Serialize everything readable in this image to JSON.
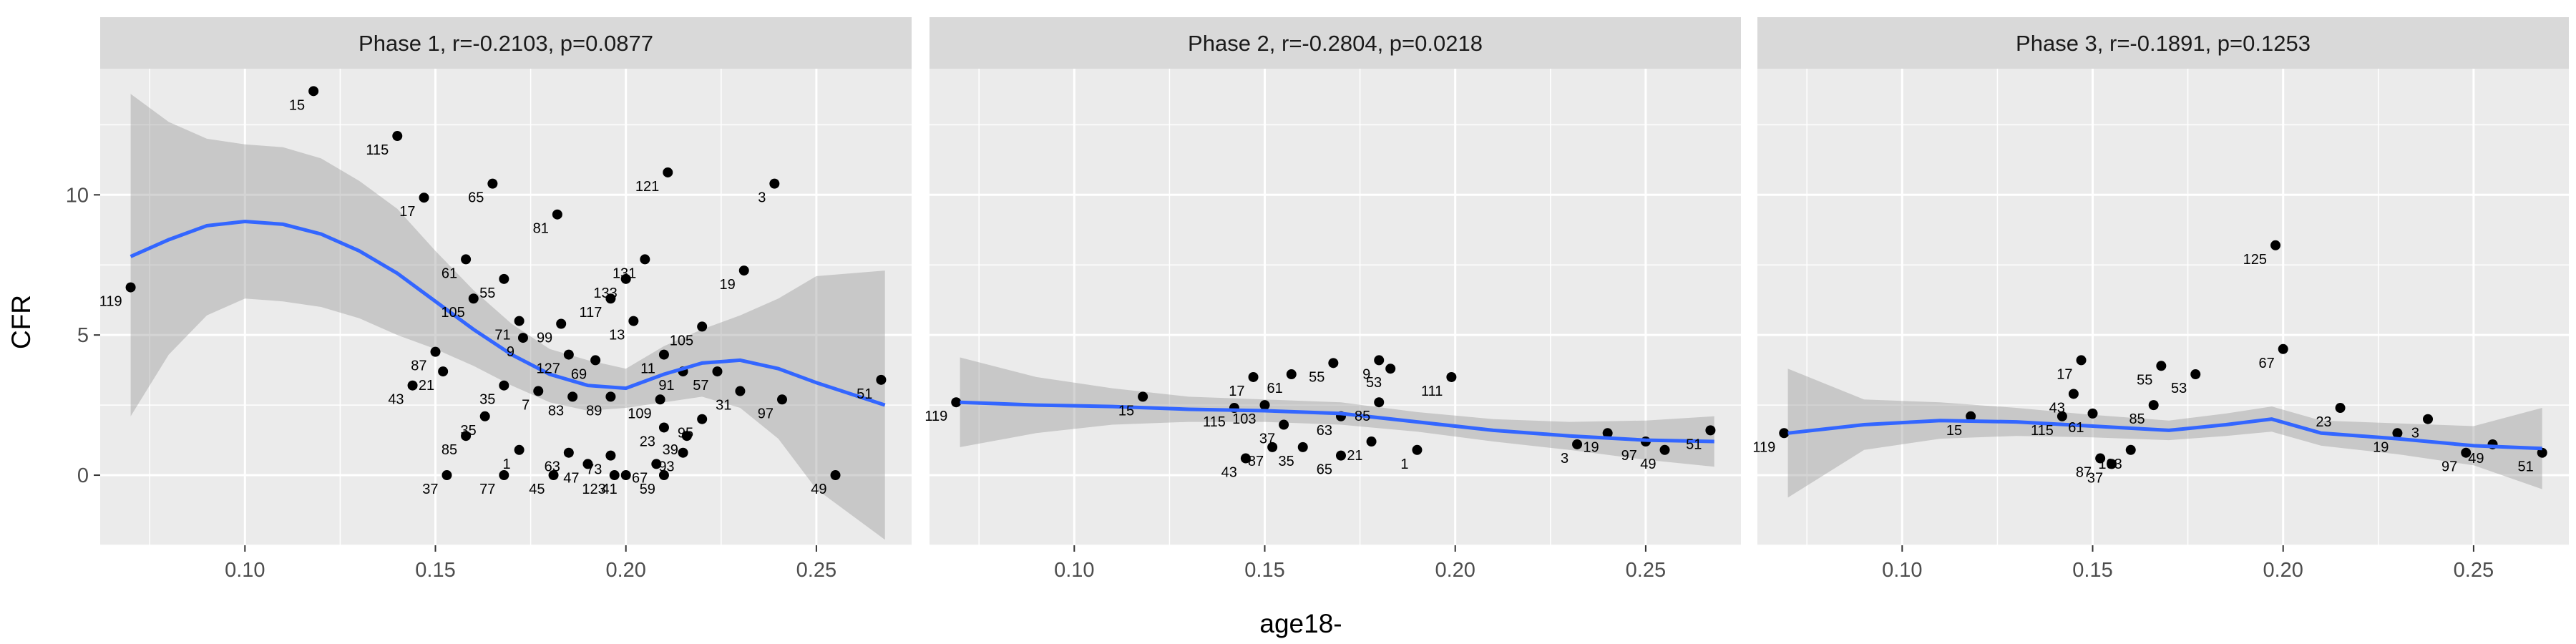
{
  "chart_data": {
    "type": "scatter",
    "xlabel": "age18-",
    "ylabel": "CFR",
    "xlim": [
      0.062,
      0.275
    ],
    "ylim": [
      -2.5,
      14.5
    ],
    "x_ticks": [
      "0.10",
      "0.15",
      "0.20",
      "0.25"
    ],
    "x_tick_values": [
      0.1,
      0.15,
      0.2,
      0.25
    ],
    "y_ticks": [
      "0",
      "5",
      "10"
    ],
    "y_tick_values": [
      0,
      5,
      10
    ],
    "grid": true,
    "colors": {
      "panel_bg": "#ebebeb",
      "strip_bg": "#d9d9d9",
      "grid": "#ffffff",
      "points": "#000000",
      "smooth_line": "#3366ff",
      "ribbon": "#999999"
    },
    "panels": [
      {
        "title": "Phase 1, r=-0.2103, p=0.0877",
        "smooth": {
          "x": [
            0.07,
            0.08,
            0.09,
            0.1,
            0.11,
            0.12,
            0.13,
            0.14,
            0.15,
            0.16,
            0.17,
            0.18,
            0.19,
            0.2,
            0.21,
            0.22,
            0.23,
            0.24,
            0.25,
            0.268
          ],
          "y": [
            7.8,
            8.4,
            8.9,
            9.05,
            8.95,
            8.6,
            8.0,
            7.2,
            6.2,
            5.2,
            4.3,
            3.6,
            3.2,
            3.1,
            3.6,
            4.0,
            4.1,
            3.8,
            3.3,
            2.5
          ],
          "lower": [
            2.1,
            4.3,
            5.7,
            6.3,
            6.2,
            6.0,
            5.6,
            5.0,
            4.5,
            3.9,
            3.2,
            2.6,
            2.3,
            2.4,
            2.6,
            2.8,
            2.4,
            1.3,
            -0.5,
            -2.3
          ],
          "upper": [
            13.6,
            12.6,
            12.0,
            11.8,
            11.7,
            11.3,
            10.5,
            9.5,
            8.0,
            6.6,
            5.4,
            4.5,
            4.1,
            3.8,
            4.6,
            5.2,
            5.7,
            6.3,
            7.1,
            7.3
          ]
        },
        "points": [
          {
            "x": 0.07,
            "y": 6.7,
            "label": "119"
          },
          {
            "x": 0.118,
            "y": 13.7,
            "label": "15"
          },
          {
            "x": 0.14,
            "y": 12.1,
            "label": "115"
          },
          {
            "x": 0.147,
            "y": 9.9,
            "label": "17"
          },
          {
            "x": 0.165,
            "y": 10.4,
            "label": "65"
          },
          {
            "x": 0.182,
            "y": 9.3,
            "label": "81"
          },
          {
            "x": 0.211,
            "y": 10.8,
            "label": "121"
          },
          {
            "x": 0.239,
            "y": 10.4,
            "label": "3"
          },
          {
            "x": 0.158,
            "y": 7.7,
            "label": "61"
          },
          {
            "x": 0.168,
            "y": 7.0,
            "label": "55"
          },
          {
            "x": 0.205,
            "y": 7.7,
            "label": "131"
          },
          {
            "x": 0.2,
            "y": 7.0,
            "label": "133"
          },
          {
            "x": 0.231,
            "y": 7.3,
            "label": "19"
          },
          {
            "x": 0.16,
            "y": 6.3,
            "label": "105"
          },
          {
            "x": 0.172,
            "y": 5.5,
            "label": "71"
          },
          {
            "x": 0.183,
            "y": 5.4,
            "label": "99"
          },
          {
            "x": 0.196,
            "y": 6.3,
            "label": "117"
          },
          {
            "x": 0.202,
            "y": 5.5,
            "label": "13"
          },
          {
            "x": 0.22,
            "y": 5.3,
            "label": "105"
          },
          {
            "x": 0.185,
            "y": 4.3,
            "label": "127"
          },
          {
            "x": 0.192,
            "y": 4.1,
            "label": "69"
          },
          {
            "x": 0.173,
            "y": 4.9,
            "label": "9"
          },
          {
            "x": 0.21,
            "y": 4.3,
            "label": "11"
          },
          {
            "x": 0.215,
            "y": 3.7,
            "label": "91"
          },
          {
            "x": 0.224,
            "y": 3.7,
            "label": "57"
          },
          {
            "x": 0.15,
            "y": 4.4,
            "label": "87"
          },
          {
            "x": 0.144,
            "y": 3.2,
            "label": "43"
          },
          {
            "x": 0.152,
            "y": 3.7,
            "label": "21"
          },
          {
            "x": 0.168,
            "y": 3.2,
            "label": "35"
          },
          {
            "x": 0.177,
            "y": 3.0,
            "label": "7"
          },
          {
            "x": 0.186,
            "y": 2.8,
            "label": "83"
          },
          {
            "x": 0.196,
            "y": 2.8,
            "label": "89"
          },
          {
            "x": 0.209,
            "y": 2.7,
            "label": "109"
          },
          {
            "x": 0.23,
            "y": 3.0,
            "label": "31"
          },
          {
            "x": 0.241,
            "y": 2.7,
            "label": "97"
          },
          {
            "x": 0.267,
            "y": 3.4,
            "label": "51"
          },
          {
            "x": 0.22,
            "y": 2.0,
            "label": "95"
          },
          {
            "x": 0.21,
            "y": 1.7,
            "label": "23"
          },
          {
            "x": 0.216,
            "y": 1.4,
            "label": "39"
          },
          {
            "x": 0.163,
            "y": 2.1,
            "label": "35"
          },
          {
            "x": 0.158,
            "y": 1.4,
            "label": "85"
          },
          {
            "x": 0.172,
            "y": 0.9,
            "label": "1"
          },
          {
            "x": 0.185,
            "y": 0.8,
            "label": "63"
          },
          {
            "x": 0.196,
            "y": 0.7,
            "label": "73"
          },
          {
            "x": 0.19,
            "y": 0.4,
            "label": "47"
          },
          {
            "x": 0.208,
            "y": 0.4,
            "label": "67"
          },
          {
            "x": 0.215,
            "y": 0.8,
            "label": "93"
          },
          {
            "x": 0.153,
            "y": 0.0,
            "label": "37"
          },
          {
            "x": 0.168,
            "y": 0.0,
            "label": "77"
          },
          {
            "x": 0.181,
            "y": 0.0,
            "label": "45"
          },
          {
            "x": 0.197,
            "y": 0.0,
            "label": "123"
          },
          {
            "x": 0.2,
            "y": 0.0,
            "label": "41"
          },
          {
            "x": 0.21,
            "y": 0.0,
            "label": "59"
          },
          {
            "x": 0.255,
            "y": 0.0,
            "label": "49"
          }
        ]
      },
      {
        "title": "Phase 2, r=-0.2804, p=0.0218",
        "smooth": {
          "x": [
            0.07,
            0.09,
            0.11,
            0.13,
            0.15,
            0.17,
            0.19,
            0.21,
            0.23,
            0.25,
            0.268
          ],
          "y": [
            2.6,
            2.5,
            2.45,
            2.35,
            2.3,
            2.2,
            1.9,
            1.6,
            1.4,
            1.25,
            1.2
          ],
          "lower": [
            1.0,
            1.5,
            1.8,
            1.9,
            1.9,
            1.8,
            1.55,
            1.2,
            0.9,
            0.55,
            0.3
          ],
          "upper": [
            4.2,
            3.5,
            3.1,
            2.8,
            2.7,
            2.6,
            2.25,
            2.0,
            1.9,
            1.95,
            2.1
          ]
        },
        "points": [
          {
            "x": 0.069,
            "y": 2.6,
            "label": "119"
          },
          {
            "x": 0.118,
            "y": 2.8,
            "label": "15"
          },
          {
            "x": 0.147,
            "y": 3.5,
            "label": "17"
          },
          {
            "x": 0.157,
            "y": 3.6,
            "label": "61"
          },
          {
            "x": 0.168,
            "y": 4.0,
            "label": "55"
          },
          {
            "x": 0.18,
            "y": 4.1,
            "label": "9"
          },
          {
            "x": 0.183,
            "y": 3.8,
            "label": "53"
          },
          {
            "x": 0.199,
            "y": 3.5,
            "label": "111"
          },
          {
            "x": 0.15,
            "y": 2.5,
            "label": "103"
          },
          {
            "x": 0.142,
            "y": 2.4,
            "label": "115"
          },
          {
            "x": 0.18,
            "y": 2.6,
            "label": "85"
          },
          {
            "x": 0.17,
            "y": 2.1,
            "label": "63"
          },
          {
            "x": 0.152,
            "y": 1.0,
            "label": "87"
          },
          {
            "x": 0.145,
            "y": 0.6,
            "label": "43"
          },
          {
            "x": 0.16,
            "y": 1.0,
            "label": "35"
          },
          {
            "x": 0.17,
            "y": 0.7,
            "label": "65"
          },
          {
            "x": 0.178,
            "y": 1.2,
            "label": "21"
          },
          {
            "x": 0.19,
            "y": 0.9,
            "label": "1"
          },
          {
            "x": 0.232,
            "y": 1.1,
            "label": "3"
          },
          {
            "x": 0.24,
            "y": 1.5,
            "label": "19"
          },
          {
            "x": 0.25,
            "y": 1.2,
            "label": "97"
          },
          {
            "x": 0.255,
            "y": 0.9,
            "label": "49"
          },
          {
            "x": 0.267,
            "y": 1.6,
            "label": "51"
          },
          {
            "x": 0.155,
            "y": 1.8,
            "label": "37"
          }
        ]
      },
      {
        "title": "Phase 3, r=-0.1891, p=0.1253",
        "smooth": {
          "x": [
            0.07,
            0.09,
            0.11,
            0.13,
            0.15,
            0.17,
            0.185,
            0.197,
            0.21,
            0.23,
            0.25,
            0.268
          ],
          "y": [
            1.5,
            1.8,
            1.95,
            1.9,
            1.75,
            1.6,
            1.8,
            2.0,
            1.5,
            1.3,
            1.05,
            0.95
          ],
          "lower": [
            -0.8,
            0.9,
            1.3,
            1.4,
            1.35,
            1.25,
            1.4,
            1.55,
            1.05,
            0.75,
            0.35,
            -0.5
          ],
          "upper": [
            3.8,
            2.7,
            2.6,
            2.4,
            2.15,
            1.95,
            2.2,
            2.45,
            1.95,
            1.85,
            1.75,
            2.4
          ]
        },
        "points": [
          {
            "x": 0.069,
            "y": 1.5,
            "label": "119"
          },
          {
            "x": 0.118,
            "y": 2.1,
            "label": "15"
          },
          {
            "x": 0.142,
            "y": 2.1,
            "label": "115"
          },
          {
            "x": 0.147,
            "y": 4.1,
            "label": "17"
          },
          {
            "x": 0.145,
            "y": 2.9,
            "label": "43"
          },
          {
            "x": 0.15,
            "y": 2.2,
            "label": "61"
          },
          {
            "x": 0.168,
            "y": 3.9,
            "label": "55"
          },
          {
            "x": 0.177,
            "y": 3.6,
            "label": "53"
          },
          {
            "x": 0.166,
            "y": 2.5,
            "label": "85"
          },
          {
            "x": 0.198,
            "y": 8.2,
            "label": "125"
          },
          {
            "x": 0.2,
            "y": 4.5,
            "label": "67"
          },
          {
            "x": 0.215,
            "y": 2.4,
            "label": "23"
          },
          {
            "x": 0.238,
            "y": 2.0,
            "label": "3"
          },
          {
            "x": 0.23,
            "y": 1.5,
            "label": "19"
          },
          {
            "x": 0.255,
            "y": 1.1,
            "label": "49"
          },
          {
            "x": 0.248,
            "y": 0.8,
            "label": "97"
          },
          {
            "x": 0.268,
            "y": 0.8,
            "label": "51"
          },
          {
            "x": 0.152,
            "y": 0.6,
            "label": "87"
          },
          {
            "x": 0.155,
            "y": 0.4,
            "label": "37"
          },
          {
            "x": 0.16,
            "y": 0.9,
            "label": "103"
          }
        ]
      }
    ]
  }
}
